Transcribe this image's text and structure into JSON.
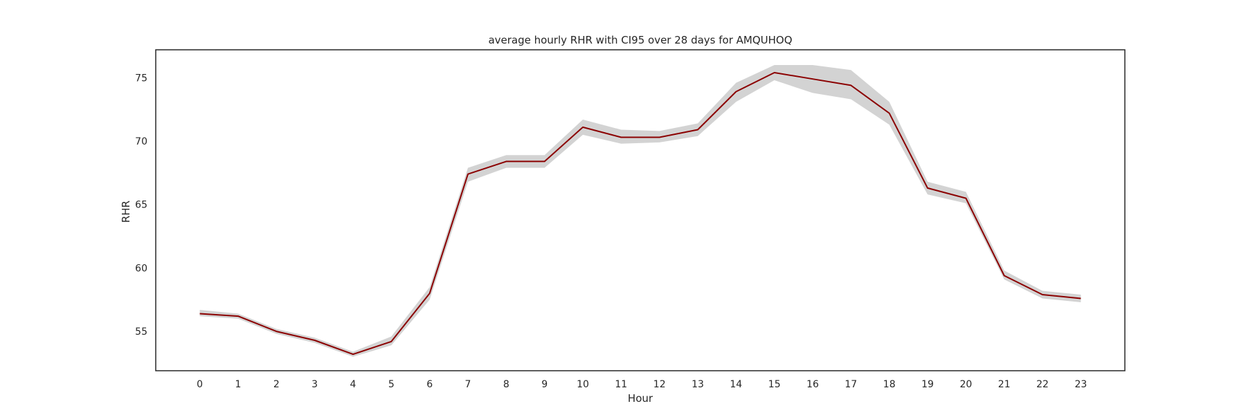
{
  "chart_data": {
    "type": "line",
    "title": "average hourly RHR with CI95 over 28 days for AMQUHOQ",
    "xlabel": "Hour",
    "ylabel": "RHR",
    "x": [
      0,
      1,
      2,
      3,
      4,
      5,
      6,
      7,
      8,
      9,
      10,
      11,
      12,
      13,
      14,
      15,
      16,
      17,
      18,
      19,
      20,
      21,
      22,
      23
    ],
    "x_tick_labels": [
      "0",
      "1",
      "2",
      "3",
      "4",
      "5",
      "6",
      "7",
      "8",
      "9",
      "10",
      "11",
      "12",
      "13",
      "14",
      "15",
      "16",
      "17",
      "18",
      "19",
      "20",
      "21",
      "22",
      "23"
    ],
    "y_ticks": [
      55,
      60,
      65,
      70,
      75
    ],
    "y_tick_labels": [
      "55",
      "60",
      "65",
      "70",
      "75"
    ],
    "xlim": [
      -1.15,
      24.15
    ],
    "ylim": [
      51.9,
      77.2
    ],
    "grid": false,
    "legend": "none",
    "series": [
      {
        "values": [
          56.4,
          56.2,
          55.0,
          54.3,
          53.2,
          54.2,
          58.0,
          67.4,
          68.4,
          68.4,
          71.1,
          70.3,
          70.3,
          70.9,
          73.9,
          75.4,
          74.9,
          74.4,
          72.2,
          66.3,
          65.5,
          59.4,
          57.9,
          57.6
        ],
        "ci_lower": [
          56.2,
          56.0,
          54.8,
          54.1,
          53.0,
          53.9,
          57.5,
          66.8,
          67.9,
          67.9,
          70.5,
          69.8,
          69.9,
          70.4,
          73.1,
          74.8,
          73.8,
          73.3,
          71.3,
          65.8,
          65.1,
          59.1,
          57.6,
          57.3
        ],
        "ci_upper": [
          56.7,
          56.4,
          55.2,
          54.5,
          53.4,
          54.6,
          58.5,
          67.9,
          68.9,
          68.9,
          71.7,
          70.9,
          70.8,
          71.4,
          74.6,
          76.0,
          76.0,
          75.6,
          73.1,
          66.8,
          66.0,
          59.8,
          58.2,
          57.9
        ]
      }
    ],
    "colors": {
      "line": "#8b0000",
      "band": "#d3d3d3",
      "frame": "#262626"
    }
  }
}
